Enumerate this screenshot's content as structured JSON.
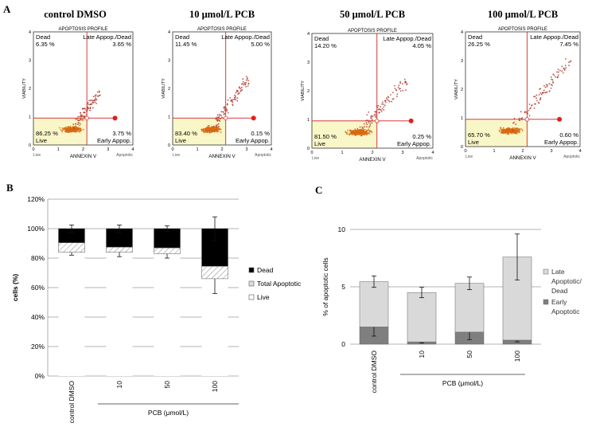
{
  "chart_data": [
    {
      "type": "scatter",
      "panel": "A",
      "plots": [
        {
          "title": "control DMSO",
          "dead": "6.35 %",
          "late": "3.65 %",
          "live": "86.25 %",
          "early": "3.75 %",
          "spread": 0.6
        },
        {
          "title": "10 μmol/L PCB",
          "dead": "11.45 %",
          "late": "5.00 %",
          "live": "83.40 %",
          "early": "0.15 %",
          "spread": 0.85
        },
        {
          "title": "50 μmol/L PCB",
          "dead": "14.20 %",
          "late": "4.05 %",
          "live": "81.50 %",
          "early": "0.25 %",
          "spread": 0.9
        },
        {
          "title": "100 μmol/L PCB",
          "dead": "26.25 %",
          "late": "7.45 %",
          "live": "65.70 %",
          "early": "0.60 %",
          "spread": 1.2
        }
      ],
      "profile_title": "APOPTOSIS PROFILE",
      "quad_dead": "Dead",
      "quad_late": "Late Appop./Dead",
      "quad_live": "Live",
      "quad_early": "Early Appop.",
      "xlabel": "ANNEXIN V",
      "ylabel": "VIABILITY",
      "x_left": "Live",
      "x_right": "Apoptotic",
      "xticks": [
        "0",
        "1",
        "2",
        "3",
        "4"
      ],
      "yticks": [
        "0",
        "1",
        "2",
        "3",
        "4"
      ],
      "xlim": [
        0,
        4
      ],
      "ylim": [
        0,
        4
      ]
    },
    {
      "type": "bar",
      "panel": "B",
      "stacked": true,
      "categories": [
        "control DMSO",
        "10",
        "50",
        "100"
      ],
      "series": [
        {
          "name": "Live",
          "values": [
            84,
            84,
            83,
            66
          ],
          "err": [
            2,
            3,
            3,
            10
          ]
        },
        {
          "name": "Total Apoptotic",
          "values": [
            6.5,
            3.5,
            4,
            8.5
          ]
        },
        {
          "name": "Dead",
          "values": [
            9.5,
            12.5,
            13,
            25.5
          ],
          "err": [
            2.5,
            2.5,
            2,
            8
          ]
        }
      ],
      "legend_order": [
        "Dead",
        "Total Apoptotic",
        "Live"
      ],
      "yticks": [
        "0%",
        "20%",
        "40%",
        "60%",
        "80%",
        "100%",
        "120%"
      ],
      "ylim": [
        0,
        120
      ],
      "ylabel": "cells (%)",
      "xlabel": "PCB (μmol/L)"
    },
    {
      "type": "bar",
      "panel": "C",
      "stacked": true,
      "categories": [
        "control DMSO",
        "10",
        "50",
        "100"
      ],
      "series": [
        {
          "name": "Early Apoptotic",
          "values": [
            1.5,
            0.2,
            1.05,
            0.35
          ],
          "err": [
            0.8,
            0.1,
            0.65,
            0.15
          ]
        },
        {
          "name": "Late Apoptotic/ Dead",
          "values": [
            3.95,
            4.3,
            4.25,
            7.25
          ],
          "err": [
            0.5,
            0.45,
            0.55,
            2
          ]
        }
      ],
      "legend": [
        [
          "Late",
          "Apoptotic/",
          "Dead"
        ],
        [
          "Early",
          "Apoptotic"
        ]
      ],
      "yticks": [
        "0",
        "5",
        "10"
      ],
      "ylim": [
        0,
        10
      ],
      "ylabel": "% of apoptotic cells",
      "xlabel": "PCB (μmol/L)"
    }
  ],
  "labels": {
    "a": "A",
    "b": "B",
    "c": "C"
  },
  "colors": {
    "dead_b": "#000000",
    "apop_b": "#dddddd",
    "early_c": "#7f7f7f",
    "late_c": "#d9d9d9",
    "dot": "#b03a2e",
    "live_fill": "#f9f6c8",
    "gate": "#d93a3a",
    "gate_dot": "#e0201e"
  }
}
